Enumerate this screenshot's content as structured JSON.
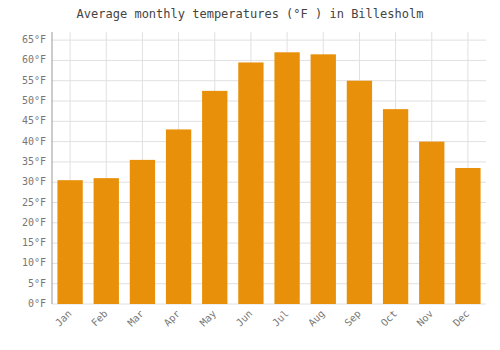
{
  "chart_data": {
    "type": "bar",
    "title": "Average monthly temperatures (°F ) in Billesholm",
    "categories": [
      "Jan",
      "Feb",
      "Mar",
      "Apr",
      "May",
      "Jun",
      "Jul",
      "Aug",
      "Sep",
      "Oct",
      "Nov",
      "Dec"
    ],
    "values": [
      30.5,
      31.0,
      35.5,
      43.0,
      52.5,
      59.5,
      62.0,
      61.5,
      55.0,
      48.0,
      40.0,
      33.5
    ],
    "color": "#E8900A",
    "ylim": [
      0,
      67
    ],
    "yticks": [
      {
        "value": 0,
        "label": "0°F"
      },
      {
        "value": 5,
        "label": "5°F"
      },
      {
        "value": 10,
        "label": "10°F"
      },
      {
        "value": 15,
        "label": "15°F"
      },
      {
        "value": 20,
        "label": "20°F"
      },
      {
        "value": 25,
        "label": "25°F"
      },
      {
        "value": 30,
        "label": "30°F"
      },
      {
        "value": 35,
        "label": "35°F"
      },
      {
        "value": 40,
        "label": "40°F"
      },
      {
        "value": 45,
        "label": "45°F"
      },
      {
        "value": 50,
        "label": "50°F"
      },
      {
        "value": 55,
        "label": "55°F"
      },
      {
        "value": 60,
        "label": "60°F"
      },
      {
        "value": 65,
        "label": "65°F"
      }
    ],
    "grid": true
  }
}
